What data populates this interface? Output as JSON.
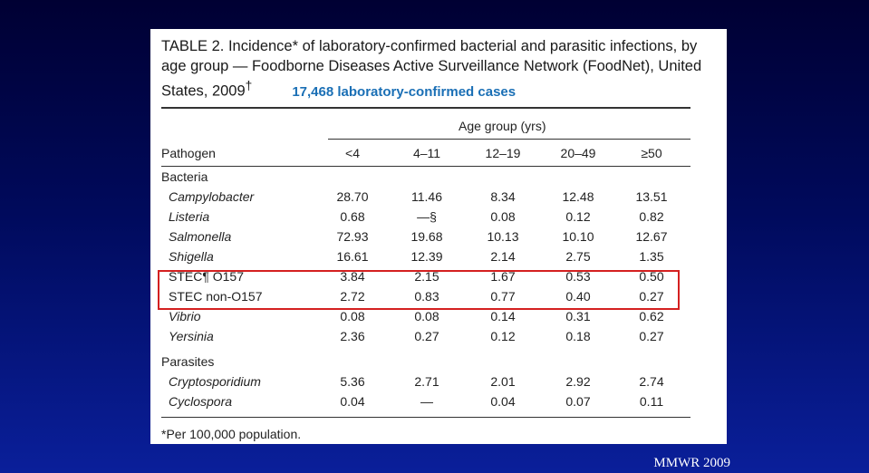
{
  "table": {
    "title": "TABLE 2. Incidence* of laboratory-confirmed bacterial and parasitic infections, by age group — Foodborne Diseases Active Surveillance Network (FoodNet), United States, 2009",
    "title_dagger": "†",
    "annotation": "17,468 laboratory-confirmed cases",
    "spanner": "Age group (yrs)",
    "col_pathogen": "Pathogen",
    "columns": [
      "<4",
      "4–11",
      "12–19",
      "20–49",
      "≥50"
    ],
    "sections": [
      {
        "name": "Bacteria",
        "rows": [
          {
            "label": "Campylobacter",
            "italic": true,
            "values": [
              "28.70",
              "11.46",
              "8.34",
              "12.48",
              "13.51"
            ]
          },
          {
            "label": "Listeria",
            "italic": true,
            "values": [
              "0.68",
              "—§",
              "0.08",
              "0.12",
              "0.82"
            ]
          },
          {
            "label": "Salmonella",
            "italic": true,
            "values": [
              "72.93",
              "19.68",
              "10.13",
              "10.10",
              "12.67"
            ]
          },
          {
            "label": "Shigella",
            "italic": true,
            "values": [
              "16.61",
              "12.39",
              "2.14",
              "2.75",
              "1.35"
            ]
          },
          {
            "label": "STEC¶ O157",
            "italic": false,
            "values": [
              "3.84",
              "2.15",
              "1.67",
              "0.53",
              "0.50"
            ]
          },
          {
            "label": "STEC non-O157",
            "italic": false,
            "values": [
              "2.72",
              "0.83",
              "0.77",
              "0.40",
              "0.27"
            ]
          },
          {
            "label": "Vibrio",
            "italic": true,
            "values": [
              "0.08",
              "0.08",
              "0.14",
              "0.31",
              "0.62"
            ]
          },
          {
            "label": "Yersinia",
            "italic": true,
            "values": [
              "2.36",
              "0.27",
              "0.12",
              "0.18",
              "0.27"
            ]
          }
        ]
      },
      {
        "name": "Parasites",
        "rows": [
          {
            "label": "Cryptosporidium",
            "italic": true,
            "values": [
              "5.36",
              "2.71",
              "2.01",
              "2.92",
              "2.74"
            ]
          },
          {
            "label": "Cyclospora",
            "italic": true,
            "values": [
              "0.04",
              "—",
              "0.04",
              "0.07",
              "0.11"
            ]
          }
        ]
      }
    ],
    "footnote": "*Per 100,000 population.",
    "highlight_color": "#d42020",
    "annotation_color": "#1a6fb5"
  },
  "source": "MMWR 2009"
}
